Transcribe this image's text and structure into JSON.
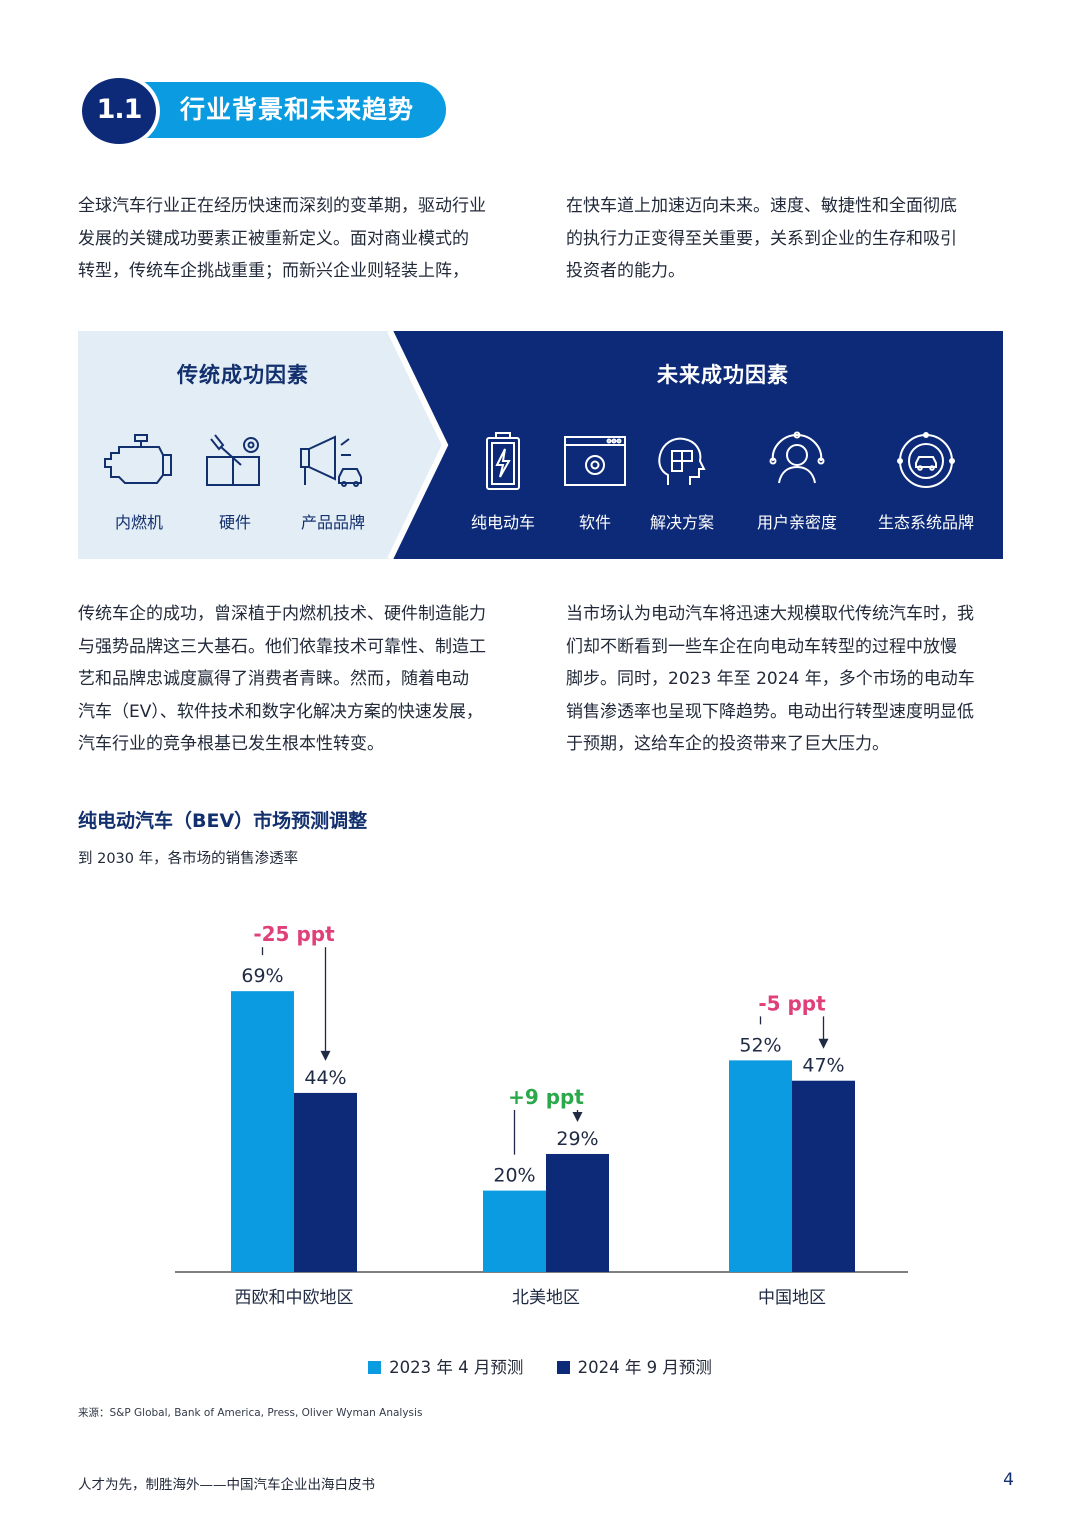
{
  "section": {
    "number": "1.1",
    "title": "行业背景和未来趋势"
  },
  "paragraphs": {
    "intro_left": [
      "全球汽车行业正在经历快速而深刻的变革期，驱动行业",
      "发展的关键成功要素正被重新定义。面对商业模式的",
      "转型，传统车企挑战重重；而新兴企业则轻装上阵，"
    ],
    "intro_right": [
      "在快车道上加速迈向未来。速度、敏捷性和全面彻底",
      "的执行力正变得至关重要，关系到企业的生存和吸引",
      "投资者的能力。"
    ],
    "body_left": [
      "传统车企的成功，曾深植于内燃机技术、硬件制造能力",
      "与强势品牌这三大基石。他们依靠技术可靠性、制造工",
      "艺和品牌忠诚度赢得了消费者青睐。然而，随着电动",
      "汽车（EV）、软件技术和数字化解决方案的快速发展，",
      "汽车行业的竞争根基已发生根本性转变。"
    ],
    "body_right": [
      "当市场认为电动汽车将迅速大规模取代传统汽车时，我",
      "们却不断看到一些车企在向电动车转型的过程中放慢",
      "脚步。同时，2023 年至 2024 年，多个市场的电动车",
      "销售渗透率也呈现下降趋势。电动出行转型速度明显低",
      "于预期，这给车企的投资带来了巨大压力。"
    ]
  },
  "factors": {
    "traditional_heading": "传统成功因素",
    "future_heading": "未来成功因素",
    "traditional": [
      {
        "label": "内燃机",
        "icon": "engine-icon"
      },
      {
        "label": "硬件",
        "icon": "tools-icon"
      },
      {
        "label": "产品品牌",
        "icon": "megaphone-icon"
      }
    ],
    "future": [
      {
        "label": "纯电动车",
        "icon": "battery-icon"
      },
      {
        "label": "软件",
        "icon": "software-window-icon"
      },
      {
        "label": "解决方案",
        "icon": "head-puzzle-icon"
      },
      {
        "label": "用户亲密度",
        "icon": "user-network-icon"
      },
      {
        "label": "生态系统品牌",
        "icon": "ecosystem-icon"
      }
    ]
  },
  "chart": {
    "title": "纯电动汽车（BEV）市场预测调整",
    "subtitle": "到 2030 年，各市场的销售渗透率"
  },
  "chart_data": {
    "type": "bar",
    "categories": [
      "西欧和中欧地区",
      "北美地区",
      "中国地区"
    ],
    "series": [
      {
        "name": "2023 年 4 月预测",
        "values": [
          69,
          20,
          52
        ],
        "labels": [
          "69%",
          "20%",
          "52%"
        ],
        "color": "#0a9be0"
      },
      {
        "name": "2024 年 9 月预测",
        "values": [
          44,
          29,
          47
        ],
        "labels": [
          "44%",
          "29%",
          "47%"
        ],
        "color": "#0c2a78"
      }
    ],
    "changes": [
      "-25 ppt",
      "+9 ppt",
      "-5 ppt"
    ],
    "change_colors": [
      "#e0407a",
      "#2aa84a",
      "#e0407a"
    ],
    "ylim": [
      0,
      75
    ],
    "grid": false,
    "legend_position": "bottom-center"
  },
  "source": "来源：S&P Global, Bank of America, Press, Oliver Wyman Analysis",
  "footer": {
    "text": "人才为先，制胜海外——中国汽车企业出海白皮书",
    "page": "4"
  },
  "colors": {
    "navy": "#0c2a78",
    "cyan": "#0a9be0",
    "light_panel": "#e3edf6",
    "decrease": "#e0407a",
    "increase": "#2aa84a"
  }
}
